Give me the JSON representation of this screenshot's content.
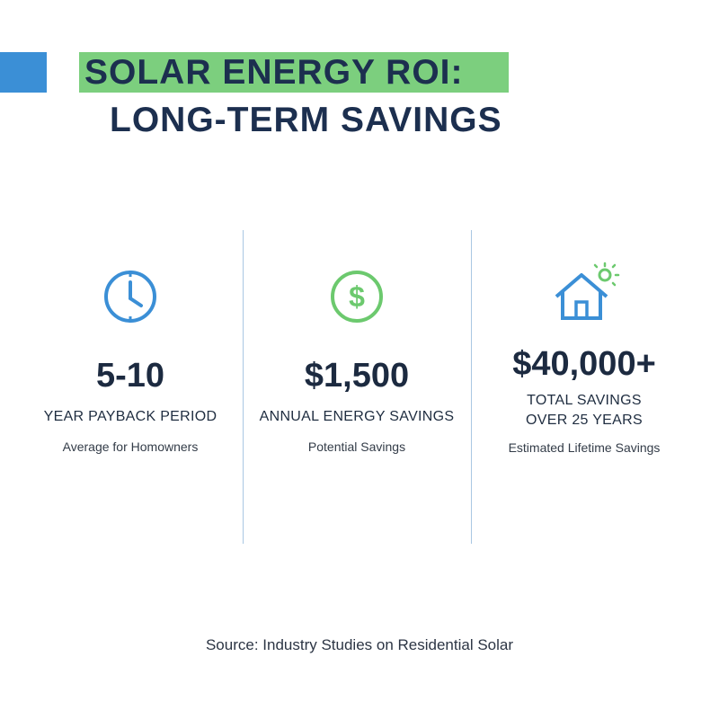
{
  "header": {
    "title_line1": "SOLAR ENERGY ROI:",
    "title_line2": "LONG-TERM SAVINGS"
  },
  "stats": [
    {
      "value": "5-10",
      "label_lines": [
        "YEAR PAYBACK PERIOD"
      ],
      "sublabel": "Average for Homowners"
    },
    {
      "value": "$1,500",
      "label_lines": [
        "ANNUAL ENERGY SAVINGS"
      ],
      "sublabel": "Potential Savings"
    },
    {
      "value": "$40,000+",
      "label_lines": [
        "TOTAL SAVINGS",
        "OVER 25 YEARS"
      ],
      "sublabel": "Estimated Lifetime Savings"
    }
  ],
  "source": "Source: Industry Studies on Residential Solar"
}
